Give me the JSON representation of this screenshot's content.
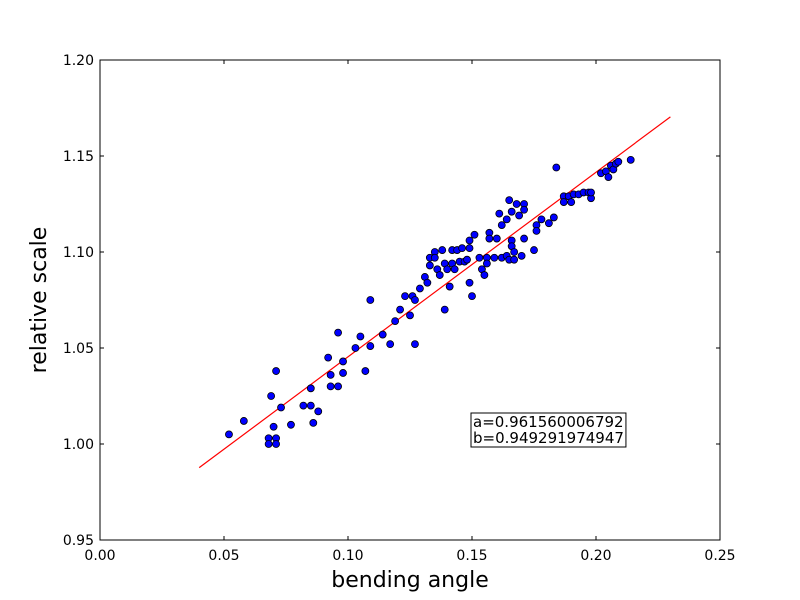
{
  "chart_data": {
    "type": "scatter",
    "xlabel": "bending angle",
    "ylabel": "relative scale",
    "xlim": [
      0.0,
      0.25
    ],
    "ylim": [
      0.95,
      1.2
    ],
    "xticks": [
      "0.00",
      "0.05",
      "0.10",
      "0.15",
      "0.20",
      "0.25"
    ],
    "yticks": [
      "0.95",
      "1.00",
      "1.05",
      "1.10",
      "1.15",
      "1.20"
    ],
    "grid": false,
    "point_color": "#0000ff",
    "line_color": "#ff0000",
    "fit_line": {
      "x": [
        0.04,
        0.23
      ],
      "y": [
        0.9877,
        1.1704
      ]
    },
    "annotation": {
      "line1": "a=0.961560006792",
      "line2": "b=0.949291974947",
      "x": 0.15,
      "y": 1.0
    },
    "points": [
      [
        0.052,
        1.005
      ],
      [
        0.058,
        1.012
      ],
      [
        0.068,
        1.003
      ],
      [
        0.068,
        1.0
      ],
      [
        0.071,
        1.003
      ],
      [
        0.071,
        1.0
      ],
      [
        0.07,
        1.009
      ],
      [
        0.069,
        1.025
      ],
      [
        0.071,
        1.038
      ],
      [
        0.073,
        1.019
      ],
      [
        0.077,
        1.01
      ],
      [
        0.082,
        1.02
      ],
      [
        0.085,
        1.029
      ],
      [
        0.085,
        1.02
      ],
      [
        0.086,
        1.011
      ],
      [
        0.088,
        1.017
      ],
      [
        0.092,
        1.045
      ],
      [
        0.093,
        1.036
      ],
      [
        0.093,
        1.03
      ],
      [
        0.096,
        1.03
      ],
      [
        0.096,
        1.058
      ],
      [
        0.098,
        1.043
      ],
      [
        0.098,
        1.037
      ],
      [
        0.103,
        1.05
      ],
      [
        0.105,
        1.056
      ],
      [
        0.107,
        1.038
      ],
      [
        0.109,
        1.051
      ],
      [
        0.109,
        1.075
      ],
      [
        0.114,
        1.057
      ],
      [
        0.117,
        1.052
      ],
      [
        0.119,
        1.064
      ],
      [
        0.121,
        1.07
      ],
      [
        0.123,
        1.077
      ],
      [
        0.125,
        1.067
      ],
      [
        0.126,
        1.077
      ],
      [
        0.127,
        1.075
      ],
      [
        0.127,
        1.052
      ],
      [
        0.129,
        1.081
      ],
      [
        0.131,
        1.087
      ],
      [
        0.132,
        1.084
      ],
      [
        0.133,
        1.097
      ],
      [
        0.133,
        1.093
      ],
      [
        0.135,
        1.1
      ],
      [
        0.135,
        1.097
      ],
      [
        0.136,
        1.091
      ],
      [
        0.137,
        1.088
      ],
      [
        0.138,
        1.101
      ],
      [
        0.139,
        1.094
      ],
      [
        0.139,
        1.07
      ],
      [
        0.14,
        1.091
      ],
      [
        0.141,
        1.082
      ],
      [
        0.142,
        1.101
      ],
      [
        0.142,
        1.094
      ],
      [
        0.143,
        1.091
      ],
      [
        0.144,
        1.101
      ],
      [
        0.145,
        1.095
      ],
      [
        0.146,
        1.102
      ],
      [
        0.147,
        1.095
      ],
      [
        0.148,
        1.096
      ],
      [
        0.149,
        1.106
      ],
      [
        0.149,
        1.102
      ],
      [
        0.149,
        1.084
      ],
      [
        0.15,
        1.077
      ],
      [
        0.151,
        1.109
      ],
      [
        0.153,
        1.097
      ],
      [
        0.154,
        1.091
      ],
      [
        0.155,
        1.088
      ],
      [
        0.156,
        1.097
      ],
      [
        0.156,
        1.094
      ],
      [
        0.157,
        1.11
      ],
      [
        0.157,
        1.107
      ],
      [
        0.159,
        1.097
      ],
      [
        0.16,
        1.107
      ],
      [
        0.161,
        1.12
      ],
      [
        0.162,
        1.114
      ],
      [
        0.162,
        1.097
      ],
      [
        0.164,
        1.117
      ],
      [
        0.164,
        1.098
      ],
      [
        0.165,
        1.096
      ],
      [
        0.165,
        1.127
      ],
      [
        0.166,
        1.121
      ],
      [
        0.166,
        1.106
      ],
      [
        0.166,
        1.103
      ],
      [
        0.167,
        1.1
      ],
      [
        0.167,
        1.096
      ],
      [
        0.168,
        1.125
      ],
      [
        0.169,
        1.119
      ],
      [
        0.17,
        1.098
      ],
      [
        0.171,
        1.125
      ],
      [
        0.171,
        1.122
      ],
      [
        0.171,
        1.107
      ],
      [
        0.175,
        1.101
      ],
      [
        0.176,
        1.114
      ],
      [
        0.176,
        1.111
      ],
      [
        0.178,
        1.117
      ],
      [
        0.181,
        1.115
      ],
      [
        0.183,
        1.118
      ],
      [
        0.184,
        1.144
      ],
      [
        0.187,
        1.129
      ],
      [
        0.187,
        1.126
      ],
      [
        0.189,
        1.129
      ],
      [
        0.19,
        1.126
      ],
      [
        0.191,
        1.13
      ],
      [
        0.193,
        1.13
      ],
      [
        0.195,
        1.131
      ],
      [
        0.197,
        1.131
      ],
      [
        0.198,
        1.128
      ],
      [
        0.198,
        1.131
      ],
      [
        0.202,
        1.141
      ],
      [
        0.204,
        1.142
      ],
      [
        0.205,
        1.139
      ],
      [
        0.206,
        1.145
      ],
      [
        0.207,
        1.143
      ],
      [
        0.208,
        1.146
      ],
      [
        0.209,
        1.147
      ],
      [
        0.214,
        1.148
      ]
    ]
  }
}
